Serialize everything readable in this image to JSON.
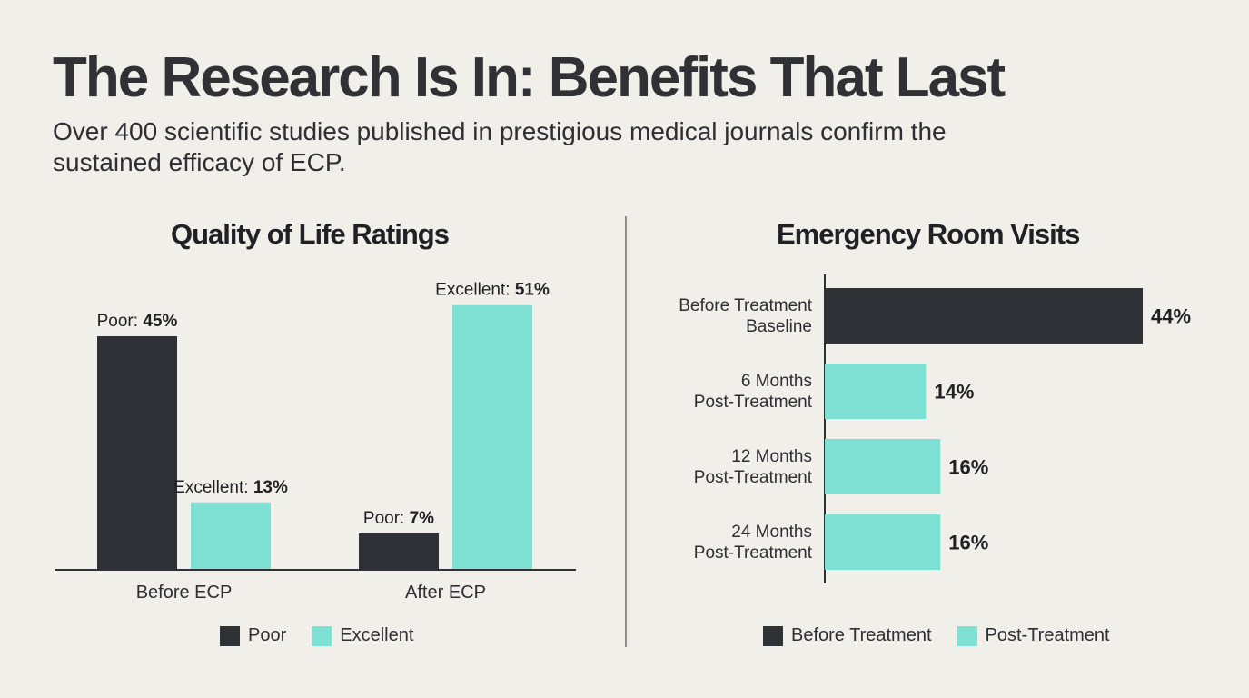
{
  "header": {
    "title": "The Research Is In: Benefits That Last",
    "subtitle": "Over 400 scientific studies published in prestigious medical journals confirm the sustained efficacy of ECP."
  },
  "colors": {
    "dark": "#2e3136",
    "teal": "#7fe0d4"
  },
  "chart_data": [
    {
      "type": "bar",
      "title": "Quality of Life Ratings",
      "categories": [
        "Before ECP",
        "After ECP"
      ],
      "series": [
        {
          "name": "Poor",
          "values": [
            45,
            7
          ],
          "label_prefix": "Poor: "
        },
        {
          "name": "Excellent",
          "values": [
            13,
            51
          ],
          "label_prefix": "Excellent: "
        }
      ],
      "ylim": [
        0,
        55
      ],
      "legend": [
        "Poor",
        "Excellent"
      ],
      "xlabel": "",
      "ylabel": ""
    },
    {
      "type": "bar",
      "orientation": "horizontal",
      "title": "Emergency Room Visits",
      "categories": [
        [
          "Before Treatment",
          "Baseline"
        ],
        [
          "6 Months",
          "Post-Treatment"
        ],
        [
          "12 Months",
          "Post-Treatment"
        ],
        [
          "24 Months",
          "Post-Treatment"
        ]
      ],
      "values": [
        44,
        14,
        16,
        16
      ],
      "groups": [
        "Before Treatment",
        "Post-Treatment",
        "Post-Treatment",
        "Post-Treatment"
      ],
      "xlim": [
        0,
        44
      ],
      "legend": [
        "Before Treatment",
        "Post-Treatment"
      ]
    }
  ]
}
